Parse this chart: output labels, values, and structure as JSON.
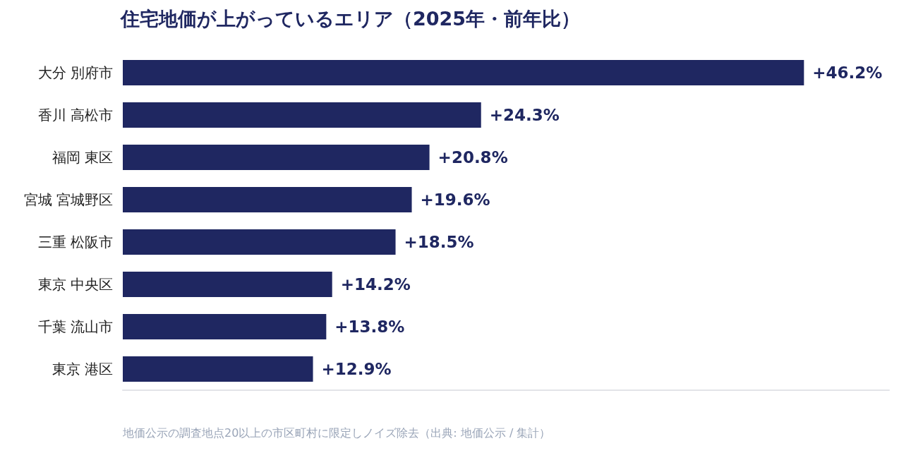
{
  "chart_data": {
    "type": "bar",
    "orientation": "horizontal",
    "title": "住宅地価が上がっているエリア（2025年・前年比）",
    "categories": [
      "大分 別府市",
      "香川 高松市",
      "福岡 東区",
      "宮城 宮城野区",
      "三重 松阪市",
      "東京 中央区",
      "千葉 流山市",
      "東京 港区"
    ],
    "values": [
      46.2,
      24.3,
      20.8,
      19.6,
      18.5,
      14.2,
      13.8,
      12.9
    ],
    "value_labels": [
      "+46.2%",
      "+24.3%",
      "+20.8%",
      "+19.6%",
      "+18.5%",
      "+14.2%",
      "+13.8%",
      "+12.9%"
    ],
    "color": "#1f2761",
    "annotations": [
      "地価公示の調査地点20以上の市区町村に限定しノイズ除去（出典: 地価公示 / 集計）"
    ]
  }
}
